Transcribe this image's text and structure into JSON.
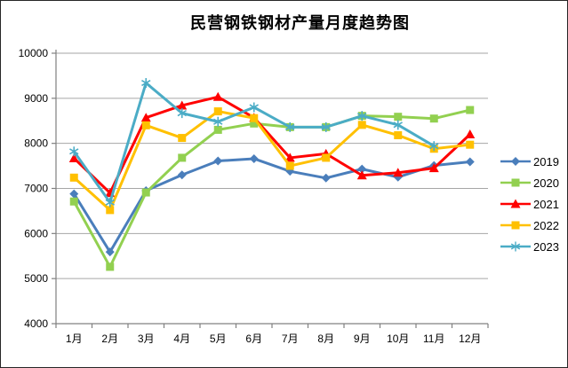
{
  "chart_data": {
    "type": "line",
    "title": "民营钢铁钢材产量月度趋势图",
    "categories": [
      "1月",
      "2月",
      "3月",
      "4月",
      "5月",
      "6月",
      "7月",
      "8月",
      "9月",
      "10月",
      "11月",
      "12月"
    ],
    "xlabel": "",
    "ylabel": "",
    "ylim": [
      4000,
      10000
    ],
    "yticks": [
      4000,
      5000,
      6000,
      7000,
      8000,
      9000,
      10000
    ],
    "grid": "horizontal",
    "legend_position": "right",
    "axis_color": "#808080",
    "gridline_color": "#a6a6a6",
    "series": [
      {
        "name": "2019",
        "color": "#4a7ebb",
        "marker": "diamond",
        "values": [
          6880,
          5590,
          6950,
          7300,
          7610,
          7660,
          7380,
          7230,
          7430,
          7250,
          7510,
          7590
        ]
      },
      {
        "name": "2020",
        "color": "#92d050",
        "marker": "square",
        "values": [
          6710,
          5260,
          6910,
          7680,
          8300,
          8440,
          8360,
          8360,
          8610,
          8590,
          8550,
          8740
        ]
      },
      {
        "name": "2021",
        "color": "#ff0000",
        "marker": "triangle",
        "values": [
          7670,
          6900,
          8570,
          8840,
          9030,
          8570,
          7680,
          7770,
          7290,
          7350,
          7450,
          8200
        ]
      },
      {
        "name": "2022",
        "color": "#ffc000",
        "marker": "square",
        "values": [
          7240,
          6520,
          8400,
          8120,
          8710,
          8560,
          7500,
          7680,
          8410,
          8180,
          7880,
          7970
        ]
      },
      {
        "name": "2023",
        "color": "#4bacc6",
        "marker": "asterisk",
        "values": [
          7820,
          6690,
          9340,
          8670,
          8480,
          8800,
          8360,
          8360,
          8610,
          8410,
          7940
        ]
      }
    ]
  }
}
